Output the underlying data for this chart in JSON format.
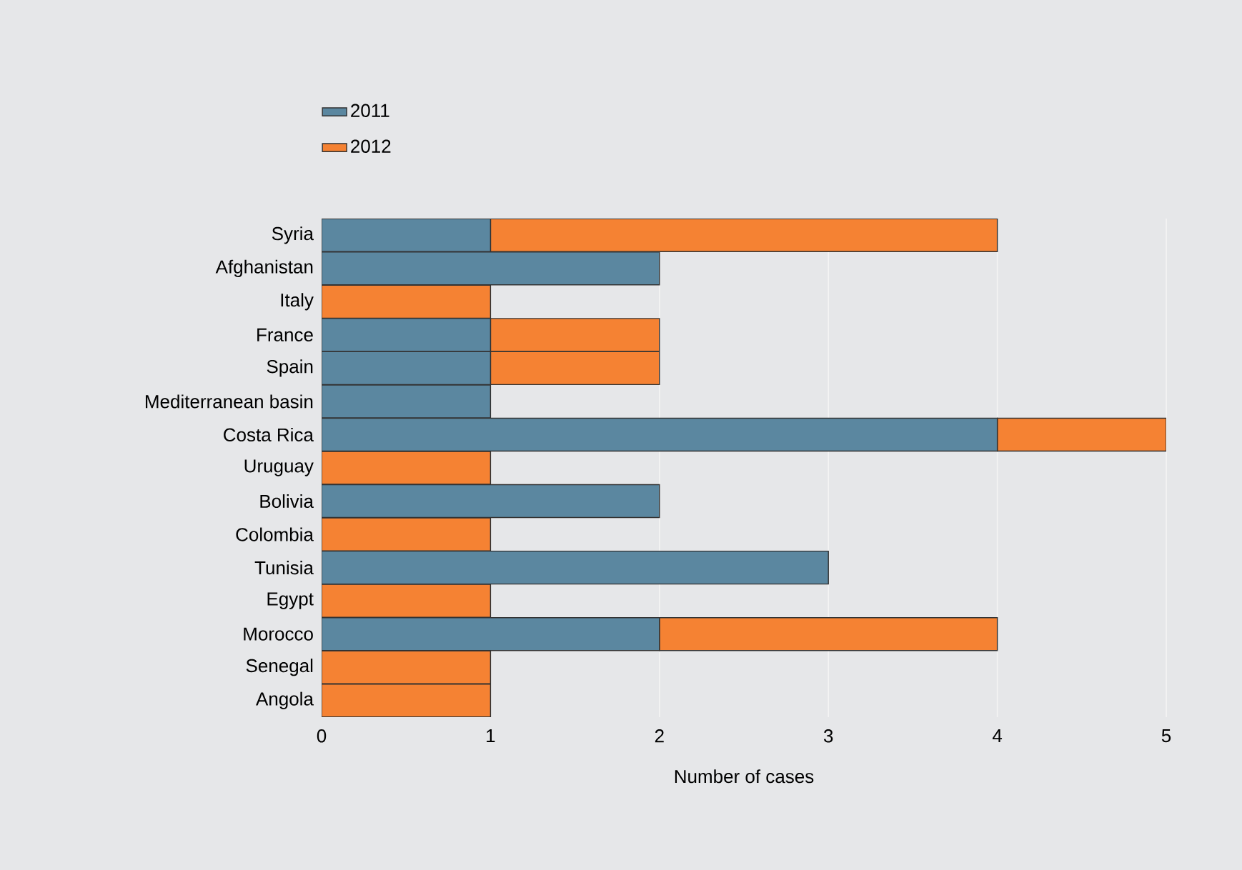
{
  "chart_data": {
    "type": "bar",
    "orientation": "horizontal",
    "stacked": true,
    "xlabel": "Number of cases",
    "categories": [
      "Syria",
      "Afghanistan",
      "Italy",
      "France",
      "Spain",
      "Mediterranean basin",
      "Costa Rica",
      "Uruguay",
      "Bolivia",
      "Colombia",
      "Tunisia",
      "Egypt",
      "Morocco",
      "Senegal",
      "Angola"
    ],
    "series": [
      {
        "name": "2011",
        "color": "#5b87a0",
        "values": [
          1,
          2,
          0,
          1,
          1,
          1,
          4,
          0,
          2,
          0,
          3,
          0,
          2,
          0,
          0
        ]
      },
      {
        "name": "2012",
        "color": "#f58233",
        "values": [
          3,
          0,
          1,
          1,
          1,
          0,
          1,
          1,
          0,
          1,
          0,
          1,
          2,
          1,
          1
        ]
      }
    ],
    "xlim": [
      0,
      5
    ],
    "xticks": [
      0,
      1,
      2,
      3,
      4,
      5
    ],
    "grid": "x",
    "legend": "top left"
  }
}
